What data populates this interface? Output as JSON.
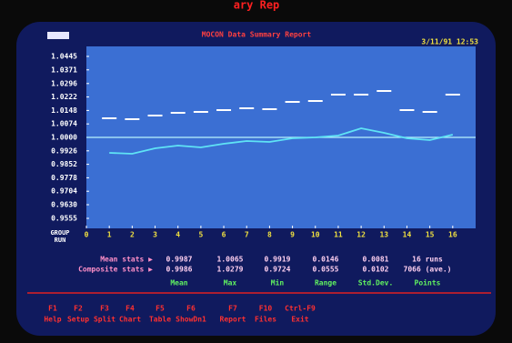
{
  "top_fragment": "ary Rep",
  "header": {
    "title": "MOCON Data Summary Report",
    "datetime": "3/11/91 12:53"
  },
  "chart_data": {
    "type": "line",
    "xlabel": [
      "GROUP",
      "RUN"
    ],
    "x": [
      1,
      2,
      3,
      4,
      5,
      6,
      7,
      8,
      9,
      10,
      11,
      12,
      13,
      14,
      15,
      16
    ],
    "xlim": [
      0,
      17
    ],
    "xticks": [
      0,
      1,
      2,
      3,
      4,
      5,
      6,
      7,
      8,
      9,
      10,
      11,
      12,
      13,
      14,
      15,
      16
    ],
    "ylim": [
      0.95,
      1.05
    ],
    "yticks": [
      1.0445,
      1.0371,
      1.0296,
      1.0222,
      1.0148,
      1.0074,
      {
        "value": 1,
        "label": "1.0000"
      },
      0.9926,
      0.9852,
      0.9778,
      0.9704,
      {
        "value": 0.963,
        "label": "0.9630"
      },
      0.9555
    ],
    "reference_line": 1,
    "series": [
      {
        "color": "#ffffff",
        "style": "dash",
        "values": [
          1.0105,
          1.01,
          1.012,
          1.0135,
          1.014,
          1.015,
          1.016,
          1.0155,
          1.0195,
          1.02,
          1.0235,
          1.0235,
          1.0255,
          1.015,
          1.014,
          1.0235
        ]
      },
      {
        "color": "#5fe3f5",
        "style": "line",
        "values": [
          0.9915,
          0.991,
          0.994,
          0.9955,
          0.9945,
          0.9965,
          0.998,
          0.9975,
          0.9995,
          1.0,
          1.001,
          1.005,
          1.0025,
          0.9995,
          0.9985,
          1.0015
        ]
      }
    ]
  },
  "stats": {
    "rows": [
      {
        "label": "Mean stats ▶",
        "values": [
          "0.9987",
          "1.0065",
          "0.9919",
          "0.0146",
          "0.0081",
          "16 runs"
        ]
      },
      {
        "label": "Composite stats ▶",
        "values": [
          "0.9986",
          "1.0279",
          "0.9724",
          "0.0555",
          "0.0102",
          "7066 (ave.)"
        ]
      }
    ],
    "columns": [
      "Mean",
      "Max",
      "Min",
      "Range",
      "Std.Dev.",
      "Points"
    ]
  },
  "function_keys": [
    {
      "key": "F1",
      "action": "Help"
    },
    {
      "key": "F2",
      "action": "Setup"
    },
    {
      "key": "F3",
      "action": "Split"
    },
    {
      "key": "F4",
      "action": "Chart"
    },
    {
      "key": "F5",
      "action": "Table"
    },
    {
      "key": "F6",
      "action": "ShowDn1"
    },
    {
      "key": "F7",
      "action": "Report"
    },
    {
      "key": "F10",
      "action": "Files"
    },
    {
      "key": "Ctrl-F9",
      "action": "Exit"
    }
  ]
}
